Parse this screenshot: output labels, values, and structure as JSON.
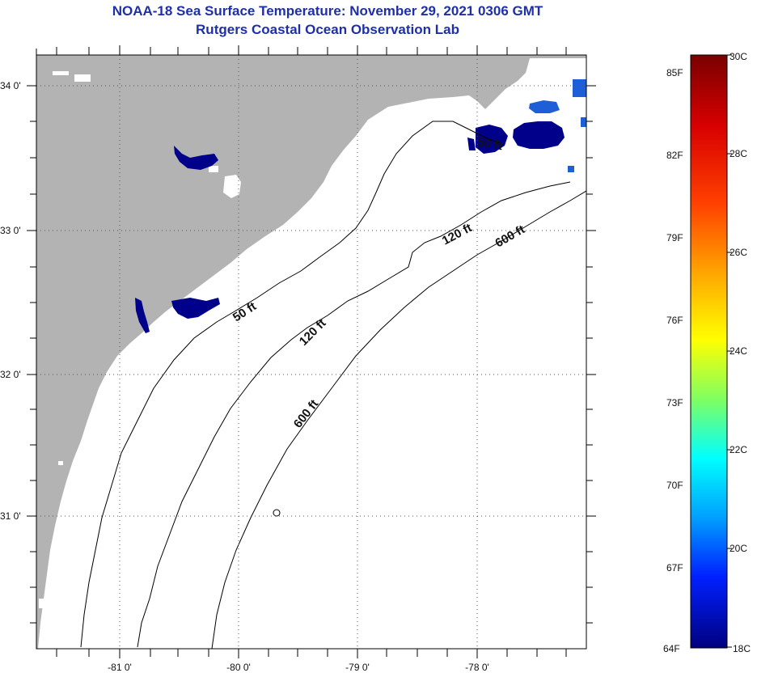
{
  "header": {
    "title": "NOAA-18 Sea Surface Temperature:  November 29, 2021 0306 GMT",
    "subtitle": "Rutgers Coastal Ocean Observation Lab"
  },
  "map": {
    "land_color": "#b3b3b3",
    "ocean_color": "#ffffff",
    "cold_water_color": "#00008b",
    "lon_labels": [
      "-81 0'",
      "-80 0'",
      "-79 0'",
      "-78 0'"
    ],
    "lat_labels": [
      "34 0'",
      "33 0'",
      "32 0'",
      "31 0'"
    ],
    "contour_labels": [
      "50 ft",
      "120 ft",
      "600 ft",
      "120 ft",
      "600 ft",
      "50 ft"
    ]
  },
  "colorbar": {
    "fahrenheit_labels": [
      "85F",
      "82F",
      "79F",
      "76F",
      "73F",
      "70F",
      "67F",
      "64F"
    ],
    "celsius_labels": [
      "30C",
      "28C",
      "26C",
      "24C",
      "22C",
      "20C",
      "18C"
    ],
    "range_c": [
      18,
      30
    ],
    "colors_top_to_bottom": [
      "#800000",
      "#e00000",
      "#ff8000",
      "#ffff00",
      "#80ff80",
      "#00ffff",
      "#0080ff",
      "#0000ff",
      "#000080"
    ]
  }
}
